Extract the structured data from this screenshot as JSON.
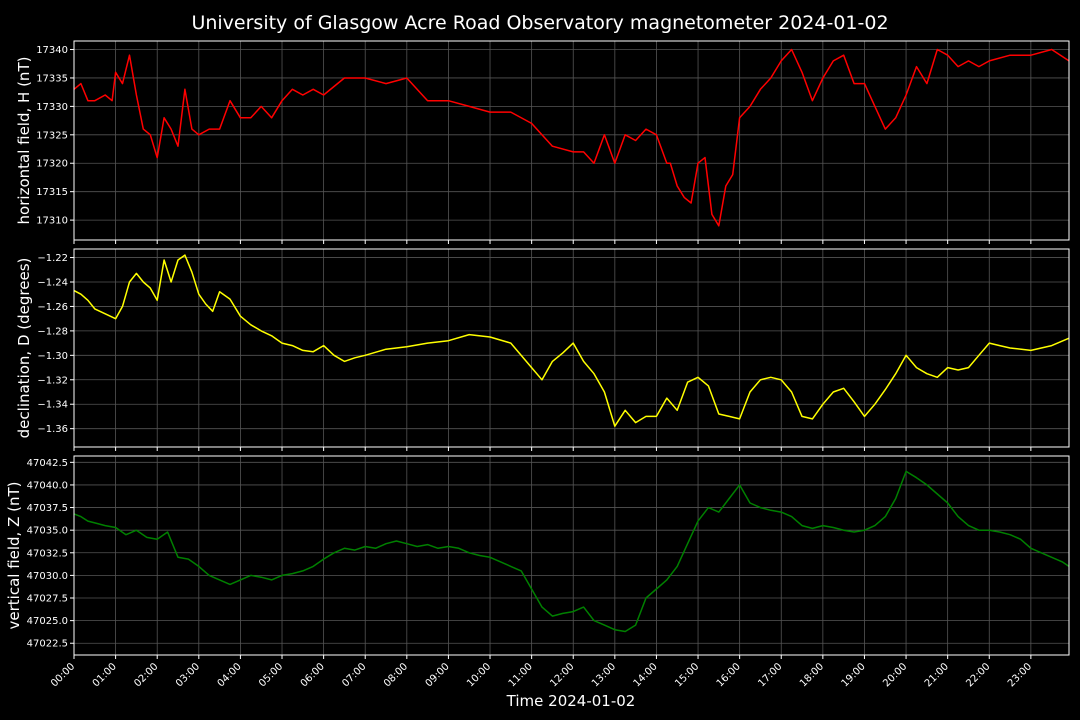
{
  "chart_data": {
    "type": "line",
    "title": "University of Glasgow Acre Road Observatory magnetometer 2024-01-02",
    "xlabel": "Time 2024-01-02",
    "x_ticks": [
      "00:00",
      "01:00",
      "02:00",
      "03:00",
      "04:00",
      "05:00",
      "06:00",
      "07:00",
      "08:00",
      "09:00",
      "10:00",
      "11:00",
      "12:00",
      "13:00",
      "14:00",
      "15:00",
      "16:00",
      "17:00",
      "18:00",
      "19:00",
      "20:00",
      "21:00",
      "22:00",
      "23:00"
    ],
    "xlim": [
      "00:00",
      "23:55"
    ],
    "grid": true,
    "background": "#000000",
    "panels": [
      {
        "ylabel": "horizontal field, H (nT)",
        "ylim": [
          17306.5,
          17341.5
        ],
        "y_ticks": [
          "17310",
          "17315",
          "17320",
          "17325",
          "17330",
          "17335",
          "17340"
        ],
        "y_tick_values": [
          17310,
          17315,
          17320,
          17325,
          17330,
          17335,
          17340
        ],
        "series": [
          {
            "color": "#ff0000",
            "x": [
              "00:00",
              "00:10",
              "00:20",
              "00:30",
              "00:45",
              "00:55",
              "01:00",
              "01:10",
              "01:20",
              "01:30",
              "01:40",
              "01:50",
              "02:00",
              "02:10",
              "02:20",
              "02:30",
              "02:40",
              "02:50",
              "03:00",
              "03:15",
              "03:30",
              "03:45",
              "04:00",
              "04:15",
              "04:30",
              "04:45",
              "05:00",
              "05:15",
              "05:30",
              "05:45",
              "06:00",
              "06:30",
              "07:00",
              "07:30",
              "08:00",
              "08:30",
              "09:00",
              "09:30",
              "10:00",
              "10:30",
              "11:00",
              "11:30",
              "12:00",
              "12:15",
              "12:30",
              "12:45",
              "13:00",
              "13:15",
              "13:30",
              "13:45",
              "14:00",
              "14:15",
              "14:20",
              "14:30",
              "14:40",
              "14:50",
              "15:00",
              "15:10",
              "15:20",
              "15:30",
              "15:40",
              "15:50",
              "16:00",
              "16:15",
              "16:30",
              "16:45",
              "17:00",
              "17:15",
              "17:30",
              "17:45",
              "18:00",
              "18:15",
              "18:30",
              "18:45",
              "19:00",
              "19:15",
              "19:30",
              "19:45",
              "20:00",
              "20:15",
              "20:30",
              "20:45",
              "21:00",
              "21:15",
              "21:30",
              "21:45",
              "22:00",
              "22:30",
              "23:00",
              "23:30",
              "23:55"
            ],
            "y": [
              17333,
              17334,
              17331,
              17331,
              17332,
              17331,
              17336,
              17334,
              17339,
              17332,
              17326,
              17325,
              17321,
              17328,
              17326,
              17323,
              17333,
              17326,
              17325,
              17326,
              17326,
              17331,
              17328,
              17328,
              17330,
              17328,
              17331,
              17333,
              17332,
              17333,
              17332,
              17335,
              17335,
              17334,
              17335,
              17331,
              17331,
              17330,
              17329,
              17329,
              17327,
              17323,
              17322,
              17322,
              17320,
              17325,
              17320,
              17325,
              17324,
              17326,
              17325,
              17320,
              17320,
              17316,
              17314,
              17313,
              17320,
              17321,
              17311,
              17309,
              17316,
              17318,
              17328,
              17330,
              17333,
              17335,
              17338,
              17340,
              17336,
              17331,
              17335,
              17338,
              17339,
              17334,
              17334,
              17330,
              17326,
              17328,
              17332,
              17337,
              17334,
              17340,
              17339,
              17337,
              17338,
              17337,
              17338,
              17339,
              17339,
              17340,
              17338
            ]
          }
        ]
      },
      {
        "ylabel": "declination, D (degrees)",
        "ylim": [
          -1.375,
          -1.213
        ],
        "y_ticks": [
          "−1.22",
          "−1.24",
          "−1.26",
          "−1.28",
          "−1.30",
          "−1.32",
          "−1.34",
          "−1.36"
        ],
        "y_tick_values": [
          -1.22,
          -1.24,
          -1.26,
          -1.28,
          -1.3,
          -1.32,
          -1.34,
          -1.36
        ],
        "series": [
          {
            "color": "#ffff00",
            "x": [
              "00:00",
              "00:10",
              "00:20",
              "00:30",
              "00:45",
              "01:00",
              "01:10",
              "01:20",
              "01:30",
              "01:40",
              "01:50",
              "02:00",
              "02:10",
              "02:20",
              "02:30",
              "02:40",
              "02:50",
              "03:00",
              "03:10",
              "03:20",
              "03:30",
              "03:45",
              "04:00",
              "04:15",
              "04:30",
              "04:45",
              "05:00",
              "05:15",
              "05:30",
              "05:45",
              "06:00",
              "06:15",
              "06:30",
              "06:45",
              "07:00",
              "07:30",
              "08:00",
              "08:30",
              "09:00",
              "09:30",
              "10:00",
              "10:30",
              "11:00",
              "11:15",
              "11:30",
              "11:45",
              "12:00",
              "12:15",
              "12:30",
              "12:45",
              "13:00",
              "13:15",
              "13:30",
              "13:45",
              "14:00",
              "14:15",
              "14:30",
              "14:45",
              "15:00",
              "15:15",
              "15:30",
              "15:45",
              "16:00",
              "16:15",
              "16:30",
              "16:45",
              "17:00",
              "17:15",
              "17:30",
              "17:45",
              "18:00",
              "18:15",
              "18:30",
              "18:45",
              "19:00",
              "19:15",
              "19:30",
              "19:45",
              "20:00",
              "20:15",
              "20:30",
              "20:45",
              "21:00",
              "21:15",
              "21:30",
              "21:45",
              "22:00",
              "22:15",
              "22:30",
              "23:00",
              "23:30",
              "23:55"
            ],
            "y": [
              -1.247,
              -1.25,
              -1.255,
              -1.262,
              -1.266,
              -1.27,
              -1.26,
              -1.24,
              -1.233,
              -1.24,
              -1.245,
              -1.255,
              -1.222,
              -1.24,
              -1.222,
              -1.218,
              -1.232,
              -1.25,
              -1.258,
              -1.264,
              -1.248,
              -1.254,
              -1.268,
              -1.275,
              -1.28,
              -1.284,
              -1.29,
              -1.292,
              -1.296,
              -1.297,
              -1.292,
              -1.3,
              -1.305,
              -1.302,
              -1.3,
              -1.295,
              -1.293,
              -1.29,
              -1.288,
              -1.283,
              -1.285,
              -1.29,
              -1.31,
              -1.32,
              -1.305,
              -1.298,
              -1.29,
              -1.305,
              -1.315,
              -1.33,
              -1.358,
              -1.345,
              -1.355,
              -1.35,
              -1.35,
              -1.335,
              -1.345,
              -1.322,
              -1.318,
              -1.325,
              -1.348,
              -1.35,
              -1.352,
              -1.33,
              -1.32,
              -1.318,
              -1.32,
              -1.33,
              -1.35,
              -1.352,
              -1.34,
              -1.33,
              -1.327,
              -1.338,
              -1.35,
              -1.34,
              -1.328,
              -1.315,
              -1.3,
              -1.31,
              -1.315,
              -1.318,
              -1.31,
              -1.312,
              -1.31,
              -1.3,
              -1.29,
              -1.292,
              -1.294,
              -1.296,
              -1.292,
              -1.286
            ]
          }
        ]
      },
      {
        "ylabel": "vertical field, Z (nT)",
        "ylim": [
          47021.2,
          47043.2
        ],
        "y_ticks": [
          "47022.5",
          "47025.0",
          "47027.5",
          "47030.0",
          "47032.5",
          "47035.0",
          "47037.5",
          "47040.0",
          "47042.5"
        ],
        "y_tick_values": [
          47022.5,
          47025,
          47027.5,
          47030,
          47032.5,
          47035,
          47037.5,
          47040,
          47042.5
        ],
        "series": [
          {
            "color": "#008000",
            "x": [
              "00:00",
              "00:10",
              "00:20",
              "00:30",
              "00:45",
              "01:00",
              "01:15",
              "01:30",
              "01:45",
              "02:00",
              "02:15",
              "02:30",
              "02:45",
              "03:00",
              "03:15",
              "03:30",
              "03:45",
              "04:00",
              "04:15",
              "04:30",
              "04:45",
              "05:00",
              "05:15",
              "05:30",
              "05:45",
              "06:00",
              "06:15",
              "06:30",
              "06:45",
              "07:00",
              "07:15",
              "07:30",
              "07:45",
              "08:00",
              "08:15",
              "08:30",
              "08:45",
              "09:00",
              "09:15",
              "09:30",
              "09:45",
              "10:00",
              "10:15",
              "10:30",
              "10:45",
              "11:00",
              "11:15",
              "11:30",
              "11:45",
              "12:00",
              "12:15",
              "12:30",
              "12:45",
              "13:00",
              "13:15",
              "13:30",
              "13:45",
              "14:00",
              "14:15",
              "14:30",
              "14:45",
              "15:00",
              "15:15",
              "15:30",
              "15:45",
              "16:00",
              "16:15",
              "16:30",
              "16:45",
              "17:00",
              "17:15",
              "17:30",
              "17:45",
              "18:00",
              "18:15",
              "18:30",
              "18:45",
              "19:00",
              "19:15",
              "19:30",
              "19:45",
              "20:00",
              "20:15",
              "20:30",
              "20:45",
              "21:00",
              "21:15",
              "21:30",
              "21:45",
              "22:00",
              "22:15",
              "22:30",
              "22:45",
              "23:00",
              "23:15",
              "23:30",
              "23:45",
              "23:55"
            ],
            "y": [
              47036.8,
              47036.5,
              47036.0,
              47035.8,
              47035.5,
              47035.3,
              47034.5,
              47035.0,
              47034.2,
              47034.0,
              47034.8,
              47032.0,
              47031.8,
              47031.0,
              47030.0,
              47029.5,
              47029.0,
              47029.5,
              47030.0,
              47029.8,
              47029.5,
              47030.0,
              47030.2,
              47030.5,
              47031.0,
              47031.8,
              47032.5,
              47033.0,
              47032.8,
              47033.2,
              47033.0,
              47033.5,
              47033.8,
              47033.5,
              47033.2,
              47033.4,
              47033.0,
              47033.2,
              47033.0,
              47032.5,
              47032.2,
              47032.0,
              47031.5,
              47031.0,
              47030.5,
              47028.5,
              47026.5,
              47025.5,
              47025.8,
              47026.0,
              47026.5,
              47025.0,
              47024.5,
              47024.0,
              47023.8,
              47024.5,
              47027.5,
              47028.5,
              47029.5,
              47031.0,
              47033.5,
              47036.0,
              47037.5,
              47037.0,
              47038.5,
              47040.0,
              47038.0,
              47037.5,
              47037.2,
              47037.0,
              47036.5,
              47035.5,
              47035.2,
              47035.5,
              47035.3,
              47035.0,
              47034.8,
              47035.0,
              47035.5,
              47036.5,
              47038.5,
              47041.5,
              47040.8,
              47040.0,
              47039.0,
              47038.0,
              47036.5,
              47035.5,
              47035.0,
              47035.0,
              47034.8,
              47034.5,
              47034.0,
              47033.0,
              47032.5,
              47032.0,
              47031.5,
              47031.0
            ]
          }
        ]
      }
    ]
  }
}
